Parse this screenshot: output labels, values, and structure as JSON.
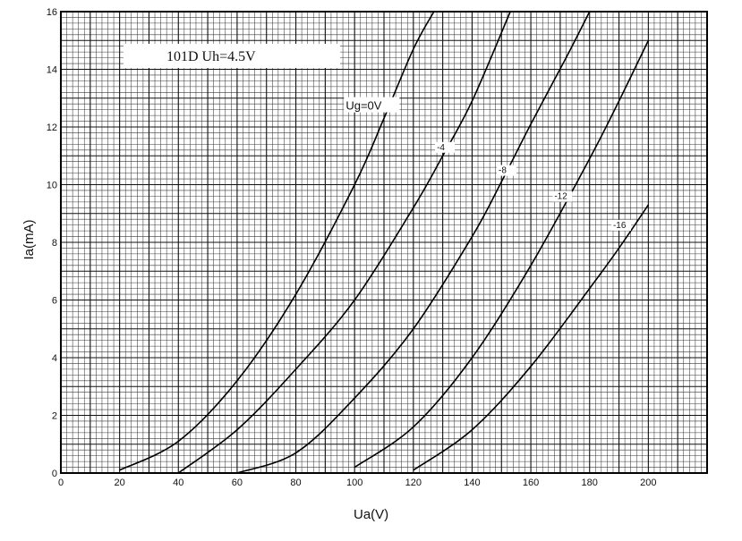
{
  "chart_data": {
    "type": "line",
    "title": "101D Uh=4.5V",
    "xlabel": "Ua(V)",
    "ylabel": "Ia(mA)",
    "xlim": [
      0,
      220
    ],
    "ylim": [
      0,
      16
    ],
    "x_ticks": [
      0,
      20,
      40,
      60,
      80,
      100,
      120,
      140,
      160,
      180,
      200
    ],
    "y_ticks": [
      0,
      2,
      4,
      6,
      8,
      10,
      12,
      14,
      16
    ],
    "grid": true,
    "series": [
      {
        "name": "Ug=0V",
        "label": "Ug=0V",
        "x": [
          20,
          40,
          60,
          80,
          100,
          110,
          120,
          127
        ],
        "y": [
          0.1,
          1.1,
          3.2,
          6.2,
          10.0,
          12.3,
          14.7,
          16.0
        ]
      },
      {
        "name": "-4",
        "label": "-4",
        "x": [
          40,
          60,
          80,
          100,
          120,
          130,
          140,
          153
        ],
        "y": [
          0.0,
          1.5,
          3.6,
          6.0,
          9.2,
          11.0,
          12.9,
          16.0
        ]
      },
      {
        "name": "-8",
        "label": "-8",
        "x": [
          60,
          80,
          100,
          120,
          140,
          150,
          160,
          172,
          180
        ],
        "y": [
          0.0,
          0.7,
          2.6,
          5.0,
          8.2,
          10.1,
          12.1,
          14.4,
          16.0
        ]
      },
      {
        "name": "-12",
        "label": "-12",
        "x": [
          100,
          120,
          140,
          160,
          180,
          190,
          200
        ],
        "y": [
          0.2,
          1.6,
          4.0,
          7.2,
          10.9,
          12.9,
          15.0
        ]
      },
      {
        "name": "-16",
        "label": "-16",
        "x": [
          120,
          140,
          160,
          180,
          190,
          200
        ],
        "y": [
          0.1,
          1.5,
          3.7,
          6.4,
          7.8,
          9.3
        ]
      }
    ]
  }
}
